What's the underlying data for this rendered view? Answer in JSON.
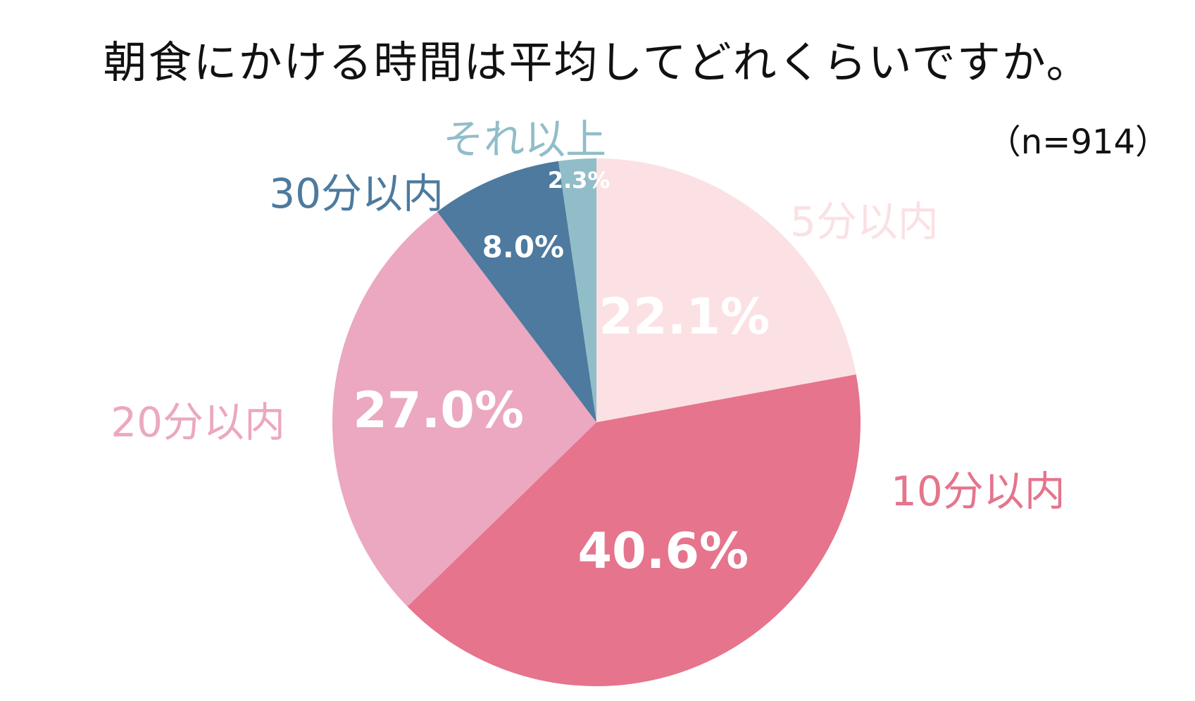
{
  "chart_data": {
    "type": "pie",
    "title": "朝食にかける時間は平均してどれくらいですか。",
    "sample_size": "（n=914）",
    "categories": [
      "5分以内",
      "10分以内",
      "20分以内",
      "30分以内",
      "それ以上"
    ],
    "values": [
      22.1,
      40.6,
      27.0,
      8.0,
      2.3
    ],
    "value_labels": [
      "22.1%",
      "40.6%",
      "27.0%",
      "8.0%",
      "2.3%"
    ],
    "colors": [
      "#fbe1e4",
      "#e5748c",
      "#eba8c0",
      "#4d7a9e",
      "#91bdc9"
    ],
    "start_angle": "12 o'clock",
    "direction": "clockwise",
    "legend": "labels placed around the pie"
  }
}
